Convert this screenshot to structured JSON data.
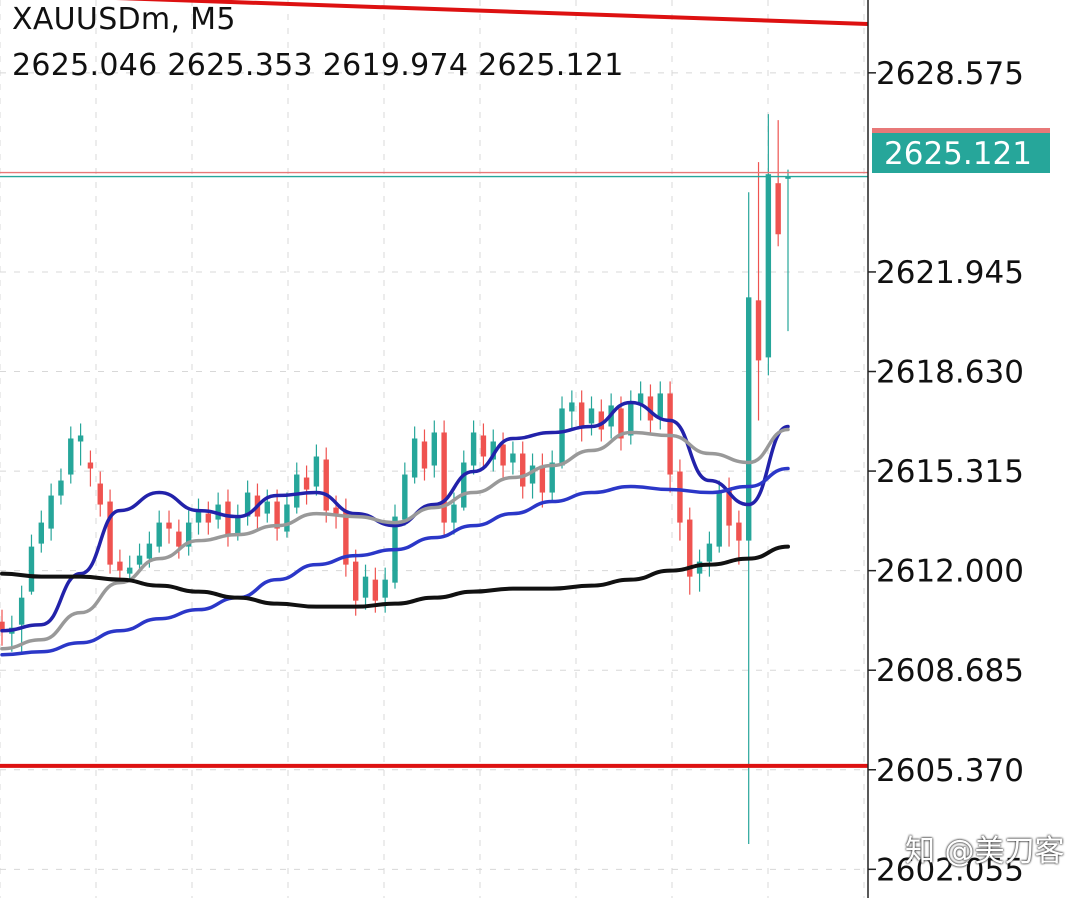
{
  "symbol_line": "XAUUSDm, M5",
  "ohlc_line": "2625.046 2625.353 2619.974 2625.121",
  "watermark": "知 @美刀客",
  "colors": {
    "bull": "#26a69a",
    "bear": "#ef5350",
    "grid": "#d8d8d8",
    "resistance": "#dd1111",
    "ask_line": "#e87878",
    "bid_line": "#26a69a",
    "ma_fast": "#2222aa",
    "ma_mid": "#999999",
    "ma_slow": "#2b37c8",
    "ma_long": "#111111"
  },
  "chart_data": {
    "type": "candlestick",
    "y_ticks": [
      "2628.575",
      "2621.945",
      "2618.630",
      "2615.315",
      "2612.000",
      "2608.685",
      "2605.370",
      "2602.055"
    ],
    "ylim": [
      2601.1,
      2631.0
    ],
    "grid": true,
    "current_price": "2625.121",
    "horizontal_lines": [
      {
        "role": "resistance",
        "from": 2631.2,
        "to": 2630.2
      },
      {
        "role": "support",
        "from": 2605.5,
        "to": 2605.5
      }
    ],
    "candle_x_range": [
      0,
      80
    ],
    "candles": [
      [
        0,
        2610.3,
        2610.0,
        2609.5
      ],
      [
        1,
        2609.9,
        2610.1,
        2609.3
      ],
      [
        2,
        2610.2,
        2611.1,
        2609.2
      ],
      [
        3,
        2611.3,
        2612.8,
        2611.2
      ],
      [
        4,
        2612.9,
        2613.6,
        2612.6
      ],
      [
        5,
        2613.4,
        2614.5,
        2613.0
      ],
      [
        6,
        2614.5,
        2615.0,
        2614.2
      ],
      [
        7,
        2615.2,
        2616.4,
        2614.9
      ],
      [
        8,
        2616.3,
        2616.5,
        2615.5
      ],
      [
        9,
        2615.6,
        2615.4,
        2614.8
      ],
      [
        10,
        2614.9,
        2614.2,
        2613.8
      ],
      [
        11,
        2614.3,
        2612.2,
        2611.9
      ],
      [
        12,
        2612.3,
        2612.0,
        2611.6
      ],
      [
        13,
        2611.9,
        2612.1,
        2611.7
      ],
      [
        14,
        2612.2,
        2612.5,
        2612.0
      ],
      [
        15,
        2612.4,
        2612.9,
        2612.1
      ],
      [
        16,
        2612.8,
        2613.6,
        2612.6
      ],
      [
        17,
        2613.6,
        2613.4,
        2612.9
      ],
      [
        18,
        2613.3,
        2612.8,
        2612.4
      ],
      [
        19,
        2612.8,
        2613.6,
        2612.5
      ],
      [
        20,
        2613.6,
        2614.0,
        2613.2
      ],
      [
        21,
        2613.9,
        2613.6,
        2613.2
      ],
      [
        22,
        2613.7,
        2614.2,
        2613.4
      ],
      [
        23,
        2614.3,
        2613.2,
        2612.8
      ],
      [
        24,
        2613.2,
        2613.8,
        2613.0
      ],
      [
        25,
        2613.8,
        2614.6,
        2613.5
      ],
      [
        26,
        2614.5,
        2613.8,
        2613.4
      ],
      [
        27,
        2613.9,
        2614.3,
        2613.6
      ],
      [
        28,
        2614.3,
        2613.4,
        2613.0
      ],
      [
        29,
        2613.3,
        2614.2,
        2613.1
      ],
      [
        30,
        2614.1,
        2615.2,
        2613.9
      ],
      [
        31,
        2615.1,
        2614.7,
        2614.2
      ],
      [
        32,
        2614.8,
        2615.8,
        2614.5
      ],
      [
        33,
        2615.7,
        2614.0,
        2613.6
      ],
      [
        34,
        2614.1,
        2613.9,
        2613.4
      ],
      [
        35,
        2614.0,
        2612.2,
        2611.8
      ],
      [
        36,
        2612.3,
        2611.0,
        2610.5
      ],
      [
        37,
        2611.1,
        2611.8,
        2610.7
      ],
      [
        38,
        2611.7,
        2611.0,
        2610.6
      ],
      [
        39,
        2611.1,
        2611.7,
        2610.6
      ],
      [
        40,
        2611.6,
        2613.8,
        2611.4
      ],
      [
        41,
        2613.7,
        2615.2,
        2613.5
      ],
      [
        42,
        2615.1,
        2616.4,
        2614.9
      ],
      [
        43,
        2616.3,
        2615.4,
        2615.0
      ],
      [
        44,
        2615.5,
        2616.6,
        2615.1
      ],
      [
        45,
        2616.6,
        2613.6,
        2613.2
      ],
      [
        46,
        2613.6,
        2614.2,
        2613.2
      ],
      [
        47,
        2614.1,
        2615.6,
        2614.0
      ],
      [
        48,
        2615.5,
        2616.6,
        2615.2
      ],
      [
        49,
        2616.5,
        2615.8,
        2615.4
      ],
      [
        50,
        2615.7,
        2616.3,
        2615.3
      ],
      [
        51,
        2616.2,
        2615.5,
        2615.1
      ],
      [
        52,
        2615.6,
        2615.9,
        2615.2
      ],
      [
        53,
        2615.9,
        2614.8,
        2614.4
      ],
      [
        54,
        2614.9,
        2615.5,
        2614.4
      ],
      [
        55,
        2615.5,
        2614.6,
        2614.1
      ],
      [
        56,
        2614.6,
        2615.6,
        2614.3
      ],
      [
        57,
        2615.5,
        2617.4,
        2615.4
      ],
      [
        58,
        2617.3,
        2617.6,
        2616.7
      ],
      [
        59,
        2617.6,
        2616.8,
        2616.3
      ],
      [
        60,
        2616.9,
        2617.4,
        2616.5
      ],
      [
        61,
        2617.3,
        2616.7,
        2616.3
      ],
      [
        62,
        2616.8,
        2617.5,
        2616.4
      ],
      [
        63,
        2617.4,
        2616.4,
        2616.0
      ],
      [
        64,
        2616.5,
        2617.6,
        2616.2
      ],
      [
        65,
        2617.5,
        2617.9,
        2617.0
      ],
      [
        66,
        2617.8,
        2617.0,
        2616.5
      ],
      [
        67,
        2617.1,
        2617.9,
        2616.7
      ],
      [
        68,
        2617.9,
        2615.2,
        2614.6
      ],
      [
        69,
        2615.3,
        2613.6,
        2613.0
      ],
      [
        70,
        2613.7,
        2611.8,
        2611.2
      ],
      [
        71,
        2611.9,
        2612.3,
        2611.3
      ],
      [
        72,
        2612.3,
        2612.9,
        2611.8
      ],
      [
        73,
        2612.8,
        2614.6,
        2612.6
      ],
      [
        74,
        2614.7,
        2613.5,
        2612.8
      ],
      [
        75,
        2613.6,
        2613.0,
        2612.2
      ],
      [
        76,
        2613.0,
        2621.1,
        2602.9
      ],
      [
        77,
        2621.0,
        2619.0,
        2617.0
      ],
      [
        78,
        2619.1,
        2625.2,
        2618.5
      ],
      [
        79,
        2624.9,
        2623.2,
        2622.8
      ],
      [
        80,
        2625.046,
        2625.121,
        2619.974
      ]
    ],
    "candle_extremes": [
      [
        76,
        2624.6
      ],
      [
        77,
        2625.6
      ],
      [
        78,
        2627.2
      ],
      [
        79,
        2627.0
      ],
      [
        80,
        2625.353
      ]
    ],
    "series": [
      {
        "role": "ma_fast",
        "x": [
          0,
          4,
          8,
          12,
          16,
          20,
          24,
          28,
          32,
          36,
          40,
          44,
          48,
          52,
          56,
          60,
          64,
          68,
          72,
          76,
          80
        ],
        "values": [
          2610.0,
          2610.2,
          2611.9,
          2614.0,
          2614.6,
          2614.0,
          2613.8,
          2614.5,
          2614.6,
          2613.9,
          2613.5,
          2614.2,
          2615.3,
          2616.4,
          2616.6,
          2616.8,
          2617.6,
          2617.0,
          2615.0,
          2614.2,
          2616.8
        ]
      },
      {
        "role": "ma_mid",
        "x": [
          0,
          4,
          8,
          12,
          16,
          20,
          24,
          28,
          32,
          36,
          40,
          44,
          48,
          52,
          56,
          60,
          64,
          68,
          72,
          76,
          80
        ],
        "values": [
          2609.4,
          2609.7,
          2610.6,
          2611.6,
          2612.4,
          2613.0,
          2613.2,
          2613.5,
          2613.9,
          2613.8,
          2613.6,
          2614.1,
          2614.6,
          2615.1,
          2615.5,
          2616.0,
          2616.6,
          2616.5,
          2615.9,
          2615.6,
          2616.7
        ]
      },
      {
        "role": "ma_slow",
        "x": [
          0,
          4,
          8,
          12,
          16,
          20,
          24,
          28,
          32,
          36,
          40,
          44,
          48,
          52,
          56,
          60,
          64,
          68,
          72,
          76,
          80
        ],
        "values": [
          2609.2,
          2609.3,
          2609.6,
          2610.0,
          2610.4,
          2610.7,
          2611.1,
          2611.7,
          2612.2,
          2612.5,
          2612.7,
          2613.1,
          2613.5,
          2613.9,
          2614.3,
          2614.6,
          2614.8,
          2614.7,
          2614.6,
          2614.8,
          2615.4
        ]
      },
      {
        "role": "ma_long",
        "x": [
          0,
          4,
          8,
          12,
          16,
          20,
          24,
          28,
          32,
          36,
          40,
          44,
          48,
          52,
          56,
          60,
          64,
          68,
          72,
          76,
          80
        ],
        "values": [
          2611.9,
          2611.8,
          2611.8,
          2611.7,
          2611.5,
          2611.3,
          2611.1,
          2610.9,
          2610.8,
          2610.8,
          2610.9,
          2611.1,
          2611.3,
          2611.4,
          2611.4,
          2611.5,
          2611.7,
          2612.0,
          2612.2,
          2612.4,
          2612.8
        ]
      }
    ]
  }
}
